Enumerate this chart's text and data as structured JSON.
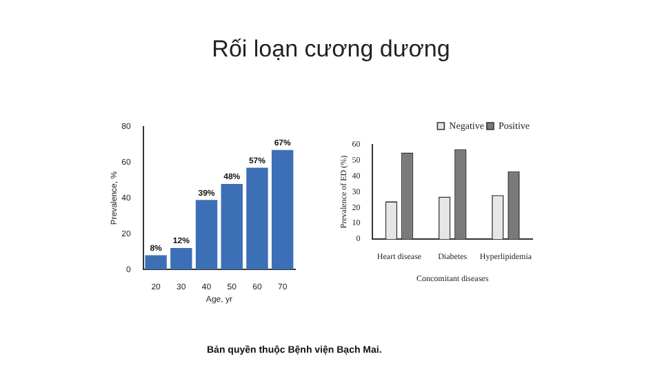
{
  "chart_data": [
    {
      "type": "bar",
      "title": "Rối loạn cương dương",
      "xlabel": "Age, yr",
      "ylabel": "Prevalence, %",
      "categories": [
        "20",
        "30",
        "40",
        "50",
        "60",
        "70"
      ],
      "values": [
        8,
        12,
        39,
        48,
        57,
        67
      ],
      "value_labels": [
        "8%",
        "12%",
        "39%",
        "48%",
        "57%",
        "67%"
      ],
      "color": "#3d6fb6",
      "ylim": [
        0,
        80
      ],
      "yticks": [
        0,
        20,
        40,
        60,
        80
      ],
      "grid": false
    },
    {
      "type": "bar",
      "xlabel": "Concomitant diseases",
      "ylabel": "Prevalence of ED (%)",
      "categories": [
        "Heart disease",
        "Diabetes",
        "Hyperlipidemia"
      ],
      "series": [
        {
          "name": "Negative",
          "color": "#e6e6e6",
          "values": [
            24,
            27,
            28
          ]
        },
        {
          "name": "Positive",
          "color": "#7a7a7a",
          "values": [
            55,
            57,
            43
          ]
        }
      ],
      "ylim": [
        0,
        60
      ],
      "yticks": [
        0,
        10,
        20,
        30,
        40,
        50,
        60
      ],
      "grid": false,
      "legend": "top right",
      "annotations": [
        "Bản quyền thuộc Bệnh viện Bạch Mai."
      ]
    }
  ]
}
